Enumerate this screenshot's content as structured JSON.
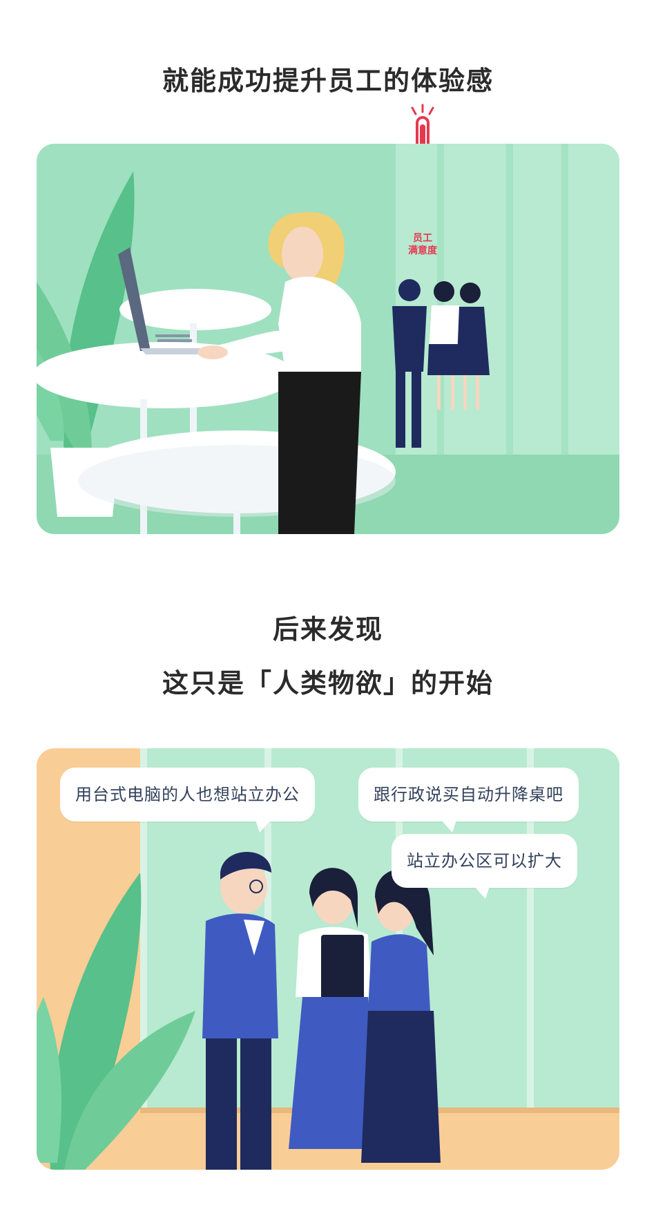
{
  "headings": {
    "top": "就能成功提升员工的体验感",
    "middle_line1": "后来发现",
    "middle_line2": "这只是「人类物欲」的开始"
  },
  "thermometer": {
    "label_line1": "员工",
    "label_line2": "满意度"
  },
  "speech_bubbles": [
    "用台式电脑的人也想站立办公",
    "跟行政说买自动升降桌吧",
    "站立办公区可以扩大"
  ],
  "colors": {
    "panel1_bg": "#9fe0c0",
    "panel2_bg": "#f9cd96",
    "accent_red": "#e53950",
    "navy": "#1f2b5e"
  }
}
